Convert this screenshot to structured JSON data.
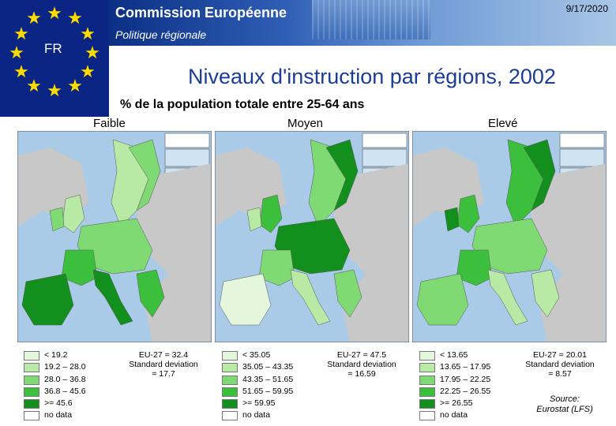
{
  "header": {
    "commission": "Commission Européenne",
    "subtitle": "Politique régionale",
    "date": "9/17/2020",
    "flag_code": "FR"
  },
  "title": "Niveaux d'instruction par régions, 2002",
  "population_label": "% de la population totale entre 25-64 ans",
  "columns": [
    {
      "label": "Faible"
    },
    {
      "label": "Moyen"
    },
    {
      "label": "Elevé"
    }
  ],
  "legends": [
    {
      "entries": [
        "< 19.2",
        "19.2 – 28.0",
        "28.0 – 36.8",
        "36.8 – 45.6",
        ">= 45.6",
        "no data"
      ],
      "stats": [
        "EU-27 = 32.4",
        "Standard deviation",
        "= 17.7"
      ]
    },
    {
      "entries": [
        "< 35.05",
        "35.05 – 43.35",
        "43.35 – 51.65",
        "51.65 – 59.95",
        ">= 59.95",
        "no data"
      ],
      "stats": [
        "EU-27 = 47.5",
        "Standard deviation",
        "= 16.59"
      ]
    },
    {
      "entries": [
        "< 13.65",
        "13.65 – 17.95",
        "17.95 – 22.25",
        "22.25 – 26.55",
        ">= 26.55",
        "no data"
      ],
      "stats": [
        "EU-27 = 20.01",
        "Standard deviation",
        "= 8.57"
      ]
    }
  ],
  "legend_colors": [
    "#e4f6dc",
    "#b8eaa6",
    "#7fda74",
    "#3cbf3c",
    "#128f1d",
    "#ffffff"
  ],
  "source": [
    "Source:",
    "Eurostat (LFS)"
  ],
  "colors": {
    "flag_blue": "#0b2584",
    "star_yellow": "#ffdd00",
    "title_blue": "#1b3d96",
    "sea": "#a9cbe8",
    "land_grey": "#c8c8c8"
  }
}
